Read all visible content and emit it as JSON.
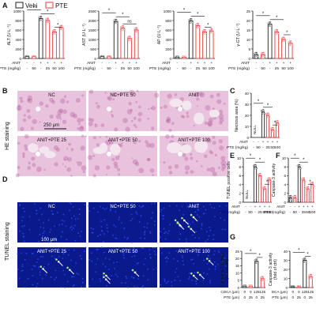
{
  "legend": {
    "vehi": "Vehi",
    "pte": "PTE"
  },
  "colors": {
    "vehi": "#222222",
    "pte": "#e8393c",
    "he_bg": "#e9c3dd",
    "he_tissue": "#b45a9a",
    "tunel_bg": "#0a1a8c",
    "tunel_spot": "#2b4dff",
    "tunel_pos": "#9be86a",
    "arrow": "#ffffff"
  },
  "panel_letters": {
    "A": "A",
    "B": "B",
    "C": "C",
    "D": "D",
    "E": "E",
    "F": "F",
    "G": "G"
  },
  "common": {
    "anit_label": "ANIT",
    "pte_label": "PTE (mg/kg)",
    "anit_row": [
      "-",
      "-",
      "+",
      "+",
      "+",
      "+"
    ],
    "pte_row": [
      "-",
      "50",
      "-",
      "25",
      "50",
      "100"
    ],
    "null_text": "NULL",
    "star": "*",
    "ns": "ns"
  },
  "chart_data": [
    {
      "type": "bar",
      "ylabel": "ALT (U·L⁻¹)",
      "ylim": [
        0,
        1000
      ],
      "yticks": [
        "0",
        "200",
        "400",
        "600",
        "800",
        "1000"
      ],
      "values": [
        40,
        38,
        840,
        800,
        560,
        650
      ]
    },
    {
      "type": "bar",
      "ylabel": "AST (U·L⁻¹)",
      "ylim": [
        0,
        2500
      ],
      "yticks": [
        "0",
        "500",
        "1000",
        "1500",
        "2000",
        "2500"
      ],
      "values": [
        100,
        90,
        1950,
        1600,
        1050,
        1500
      ]
    },
    {
      "type": "bar",
      "ylabel": "AP (U·L⁻¹)",
      "ylim": [
        0,
        1000
      ],
      "yticks": [
        "0",
        "200",
        "400",
        "600",
        "800",
        "1000"
      ],
      "values": [
        30,
        28,
        790,
        690,
        560,
        580
      ]
    },
    {
      "type": "bar",
      "ylabel": "γ-GT (U·L⁻¹)",
      "ylim": [
        0,
        25
      ],
      "yticks": [
        "0",
        "5",
        "10",
        "15",
        "20",
        "25"
      ],
      "values": [
        2,
        2,
        18,
        14,
        10,
        8
      ]
    },
    {
      "type": "bar",
      "ylabel": "Necrosis area (%)",
      "ylim": [
        0,
        40
      ],
      "yticks": [
        "0",
        "10",
        "20",
        "30",
        "40"
      ],
      "values": [
        0,
        0,
        23,
        20,
        7,
        13
      ]
    },
    {
      "type": "bar",
      "ylabel": "TUNEL positive cells",
      "ylim": [
        0,
        10
      ],
      "yticks": [
        "0",
        "2",
        "4",
        "6",
        "8",
        "10"
      ],
      "values": [
        0,
        0,
        8,
        6,
        3,
        5
      ]
    },
    {
      "type": "bar",
      "ylabel": "Caspase-3 activity",
      "ylim": [
        0,
        10
      ],
      "yticks": [
        "0",
        "2",
        "4",
        "6",
        "8",
        "10"
      ],
      "values": [
        1,
        1,
        8,
        5,
        3,
        4
      ]
    },
    {
      "type": "bar",
      "ylabel": "Caspase-3 activity\n(fold of ctrl)",
      "ylim": [
        0,
        25
      ],
      "yticks": [
        "0",
        "5",
        "10",
        "15",
        "20",
        "25"
      ],
      "categories_rows": {
        "labels": [
          "CDCA (μm)",
          "PTE (μm)"
        ],
        "rows": [
          [
            "0",
            "0",
            "125",
            "125"
          ],
          [
            "0",
            "25",
            "0",
            "25"
          ]
        ]
      },
      "values": [
        1,
        1,
        18,
        6
      ]
    },
    {
      "type": "bar",
      "ylabel": "Caspase-3 activity\n(fold of ctrl)",
      "ylim": [
        0,
        40
      ],
      "yticks": [
        "0",
        "10",
        "20",
        "30",
        "40"
      ],
      "categories_rows": {
        "labels": [
          "DCA (μm)",
          "PTE (μm)"
        ],
        "rows": [
          [
            "0",
            "0",
            "125",
            "125"
          ],
          [
            "0",
            "25",
            "0",
            "25"
          ]
        ]
      },
      "values": [
        1,
        1,
        30,
        12
      ]
    }
  ],
  "he": {
    "side_label": "HE staining",
    "tiles": [
      "NC",
      "NC+PTE 50",
      "ANIT",
      "ANIT+PTE 25",
      "ANIT+PTE 50",
      "ANIT+PTE 100"
    ],
    "scale": "250 μm"
  },
  "tunel": {
    "side_label": "TUNEL staining",
    "tiles": [
      "NC",
      "NC+PTE 50",
      "ANIT",
      "ANIT+PTE 25",
      "ANIT+PTE 50",
      "ANIT+PTE 100"
    ],
    "scale": "100 μm"
  }
}
